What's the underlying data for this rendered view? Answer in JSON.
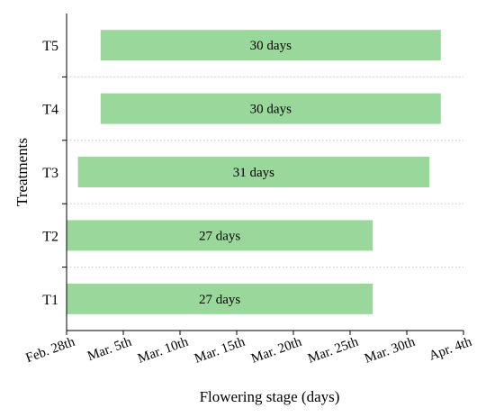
{
  "chart_data": {
    "type": "bar",
    "orientation": "horizontal",
    "title": "",
    "xlabel": "Flowering stage (days)",
    "ylabel": "Treatments",
    "x_ticks": [
      "Feb. 28th",
      "Mar. 5th",
      "Mar. 10th",
      "Mar. 15th",
      "Mar. 20th",
      "Mar. 25th",
      "Mar. 30th",
      "Apr. 4th"
    ],
    "xlim": [
      "Feb. 28th",
      "Apr. 4th"
    ],
    "categories": [
      "T1",
      "T2",
      "T3",
      "T4",
      "T5"
    ],
    "bars": [
      {
        "category": "T1",
        "start": "Feb. 28th",
        "end": "Mar. 27th",
        "label": "27 days"
      },
      {
        "category": "T2",
        "start": "Feb. 28th",
        "end": "Mar. 27th",
        "label": "27 days"
      },
      {
        "category": "T3",
        "start": "Mar. 1st",
        "end": "Apr. 1st",
        "label": "31 days"
      },
      {
        "category": "T4",
        "start": "Mar. 3rd",
        "end": "Apr. 2nd",
        "label": "30 days"
      },
      {
        "category": "T5",
        "start": "Mar. 3rd",
        "end": "Apr. 2nd",
        "label": "30 days"
      }
    ],
    "bar_color": "#99d89a",
    "grid": "horizontal dotted separators between categories",
    "legend": "none"
  }
}
